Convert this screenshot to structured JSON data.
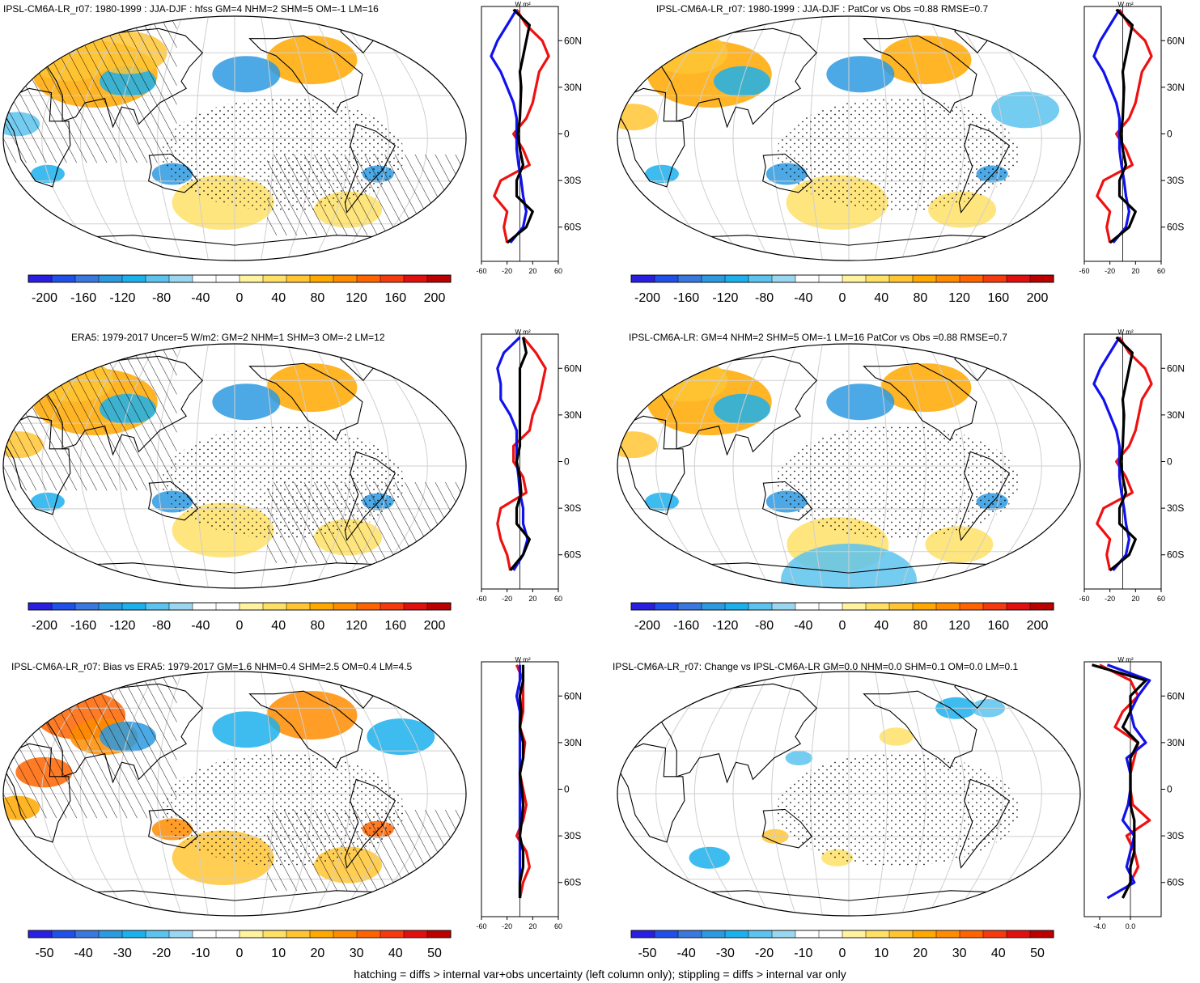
{
  "footer": "hatching = diffs > internal var+obs uncertainty (left column only); stippling = diffs > internal var only",
  "colors": {
    "ocean": "#ffffff",
    "land_outline": "#000000",
    "graticule": "#cfcfcf",
    "palette": [
      "#2a1fe0",
      "#2050e8",
      "#3a78e0",
      "#2d9ae0",
      "#1cb0ec",
      "#5cc3ee",
      "#9bd6f1",
      "#ffffff",
      "#ffffff",
      "#fff3a0",
      "#ffe066",
      "#ffc535",
      "#ffa800",
      "#ff8c00",
      "#ff6400",
      "#f53a10",
      "#e01010",
      "#bb0000"
    ],
    "profile_red": "#ee1111",
    "profile_blue": "#1111ee",
    "profile_black": "#000000"
  },
  "profile_axis": {
    "unit": "W m²",
    "lat_ticks": [
      "60N",
      "30N",
      "0",
      "30S",
      "60S"
    ],
    "x_ticks": [
      "-60",
      "-20",
      "20",
      "60"
    ],
    "x_ticks_small": [
      "-4.0",
      "0.0"
    ]
  },
  "panels": [
    {
      "title": "IPSL-CM6A-LR_r07: 1980-1999 : JJA-DJF : hfss GM=4 NHM=2 SHM=5 OM=-1 LM=16",
      "colorbar_labels": [
        "-200",
        "-160",
        "-120",
        "-80",
        "-40",
        "0",
        "40",
        "80",
        "120",
        "160",
        "200"
      ],
      "hatched": true,
      "profile_scale": "large"
    },
    {
      "title": "IPSL-CM6A-LR_r07: 1980-1999 : JJA-DJF : PatCor vs Obs =0.88 RMSE=0.7",
      "colorbar_labels": [
        "-200",
        "-160",
        "-120",
        "-80",
        "-40",
        "0",
        "40",
        "80",
        "120",
        "160",
        "200"
      ],
      "hatched": false,
      "profile_scale": "large"
    },
    {
      "title": "ERA5: 1979-2017 Uncer=5 W/m2: GM=2 NHM=1 SHM=3 OM=-2 LM=12",
      "colorbar_labels": [
        "-200",
        "-160",
        "-120",
        "-80",
        "-40",
        "0",
        "40",
        "80",
        "120",
        "160",
        "200"
      ],
      "hatched": true,
      "profile_scale": "large"
    },
    {
      "title": "IPSL-CM6A-LR: GM=4 NHM=2 SHM=5 OM=-1 LM=16 PatCor vs Obs =0.88 RMSE=0.7",
      "colorbar_labels": [
        "-200",
        "-160",
        "-120",
        "-80",
        "-40",
        "0",
        "40",
        "80",
        "120",
        "160",
        "200"
      ],
      "hatched": false,
      "profile_scale": "large"
    },
    {
      "title": "IPSL-CM6A-LR_r07: Bias vs ERA5: 1979-2017 GM=1.6 NHM=0.4 SHM=2.5 OM=0.4 LM=4.5",
      "colorbar_labels": [
        "-50",
        "-40",
        "-30",
        "-20",
        "-10",
        "0",
        "10",
        "20",
        "30",
        "40",
        "50"
      ],
      "hatched": true,
      "profile_scale": "large"
    },
    {
      "title": "IPSL-CM6A-LR_r07: Change vs IPSL-CM6A-LR GM=0.0 NHM=0.0 SHM=0.1 OM=0.0 LM=0.1",
      "colorbar_labels": [
        "-50",
        "-40",
        "-30",
        "-20",
        "-10",
        "0",
        "10",
        "20",
        "30",
        "40",
        "50"
      ],
      "hatched": false,
      "profile_scale": "small"
    }
  ],
  "chart_data": [
    {
      "type": "heatmap",
      "title": "IPSL-CM6A-LR_r07: 1980-1999 : JJA-DJF : hfss GM=4 NHM=2 SHM=5 OM=-1 LM=16",
      "projection": "Robinson (Pacific-centred)",
      "global_means": {
        "GM": 4,
        "NHM": 2,
        "SHM": 5,
        "OM": -1,
        "LM": 16
      },
      "colorbar_range": [
        -200,
        200
      ],
      "zonal_mean_profiles": {
        "x_range": [
          -60,
          60
        ],
        "lat": [
          80,
          70,
          60,
          50,
          40,
          30,
          20,
          10,
          0,
          -10,
          -20,
          -30,
          -40,
          -50,
          -60,
          -70
        ],
        "series": [
          {
            "values": [
              -5,
              10,
              35,
              45,
              30,
              25,
              20,
              10,
              -10,
              5,
              15,
              -30,
              -40,
              -20,
              -25,
              -20
            ]
          },
          {
            "values": [
              -5,
              -20,
              -35,
              -45,
              -30,
              -20,
              -10,
              -5,
              -5,
              -5,
              -2,
              2,
              5,
              10,
              5,
              -15
            ]
          },
          {
            "values": [
              -10,
              15,
              10,
              5,
              0,
              2,
              1,
              0,
              -3,
              0,
              5,
              -5,
              -5,
              20,
              10,
              -20
            ]
          }
        ]
      }
    },
    {
      "type": "heatmap",
      "title": "IPSL-CM6A-LR_r07: 1980-1999 : JJA-DJF : PatCor vs Obs =0.88 RMSE=0.7",
      "projection": "Robinson (Pacific-centred)",
      "pattern_correlation": 0.88,
      "rmse": 0.7,
      "colorbar_range": [
        -200,
        200
      ],
      "zonal_mean_profiles": {
        "x_range": [
          -60,
          60
        ],
        "lat": [
          80,
          70,
          60,
          50,
          40,
          30,
          20,
          10,
          0,
          -10,
          -20,
          -30,
          -40,
          -50,
          -60,
          -70
        ],
        "series": [
          {
            "values": [
              -5,
              10,
              35,
              45,
              30,
              25,
              20,
              10,
              -10,
              5,
              15,
              -30,
              -40,
              -20,
              -25,
              -20
            ]
          },
          {
            "values": [
              -5,
              -20,
              -35,
              -45,
              -30,
              -20,
              -10,
              -5,
              -5,
              -5,
              -2,
              2,
              5,
              10,
              5,
              -15
            ]
          },
          {
            "values": [
              -10,
              15,
              10,
              5,
              0,
              2,
              1,
              0,
              -3,
              0,
              5,
              -5,
              -5,
              20,
              10,
              -20
            ]
          }
        ]
      }
    },
    {
      "type": "heatmap",
      "title": "ERA5: 1979-2017 Uncer=5 W/m2: GM=2 NHM=1 SHM=3 OM=-2 LM=12",
      "projection": "Robinson (Pacific-centred)",
      "global_means": {
        "GM": 2,
        "NHM": 1,
        "SHM": 3,
        "OM": -2,
        "LM": 12
      },
      "colorbar_range": [
        -200,
        200
      ],
      "zonal_mean_profiles": {
        "x_range": [
          -60,
          60
        ],
        "lat": [
          80,
          70,
          60,
          50,
          40,
          30,
          20,
          10,
          0,
          -10,
          -20,
          -30,
          -40,
          -50,
          -60,
          -70
        ],
        "series": [
          {
            "values": [
              5,
              25,
              40,
              35,
              30,
              20,
              15,
              -10,
              -10,
              5,
              10,
              -30,
              -35,
              -30,
              -20,
              -15
            ]
          },
          {
            "values": [
              0,
              -25,
              -35,
              -30,
              -30,
              -15,
              -5,
              -5,
              -5,
              -2,
              0,
              5,
              5,
              12,
              5,
              -10
            ]
          },
          {
            "values": [
              5,
              10,
              0,
              0,
              0,
              0,
              0,
              0,
              -5,
              0,
              2,
              -5,
              -5,
              15,
              5,
              -15
            ]
          }
        ]
      }
    },
    {
      "type": "heatmap",
      "title": "IPSL-CM6A-LR: GM=4 NHM=2 SHM=5 OM=-1 LM=16 PatCor vs Obs =0.88 RMSE=0.7",
      "projection": "Robinson (Pacific-centred)",
      "global_means": {
        "GM": 4,
        "NHM": 2,
        "SHM": 5,
        "OM": -1,
        "LM": 16
      },
      "pattern_correlation": 0.88,
      "rmse": 0.7,
      "colorbar_range": [
        -200,
        200
      ],
      "zonal_mean_profiles": {
        "x_range": [
          -60,
          60
        ],
        "lat": [
          80,
          70,
          60,
          50,
          40,
          30,
          20,
          10,
          0,
          -10,
          -20,
          -30,
          -40,
          -50,
          -60,
          -70
        ],
        "series": [
          {
            "values": [
              -5,
              10,
              35,
              45,
              30,
              25,
              20,
              10,
              -10,
              5,
              15,
              -30,
              -40,
              -20,
              -25,
              -20
            ]
          },
          {
            "values": [
              -5,
              -20,
              -35,
              -45,
              -30,
              -20,
              -10,
              -5,
              -5,
              -5,
              -2,
              2,
              5,
              10,
              5,
              -15
            ]
          },
          {
            "values": [
              -10,
              15,
              10,
              5,
              0,
              2,
              1,
              0,
              -3,
              0,
              5,
              -5,
              -5,
              20,
              10,
              -20
            ]
          }
        ]
      }
    },
    {
      "type": "heatmap",
      "title": "IPSL-CM6A-LR_r07: Bias vs ERA5: 1979-2017 GM=1.6 NHM=0.4 SHM=2.5 OM=0.4 LM=4.5",
      "projection": "Robinson (Pacific-centred)",
      "global_means": {
        "GM": 1.6,
        "NHM": 0.4,
        "SHM": 2.5,
        "OM": 0.4,
        "LM": 4.5
      },
      "colorbar_range": [
        -50,
        50
      ],
      "zonal_mean_profiles": {
        "x_range": [
          -60,
          60
        ],
        "lat": [
          80,
          70,
          60,
          50,
          40,
          30,
          20,
          10,
          0,
          -10,
          -20,
          -30,
          -40,
          -50,
          -60,
          -70
        ],
        "series": [
          {
            "values": [
              -5,
              5,
              5,
              5,
              0,
              8,
              5,
              0,
              5,
              10,
              5,
              -5,
              10,
              15,
              5,
              0
            ]
          },
          {
            "values": [
              0,
              0,
              -5,
              0,
              0,
              0,
              0,
              0,
              0,
              0,
              0,
              0,
              0,
              0,
              0,
              0
            ]
          },
          {
            "values": [
              5,
              5,
              0,
              2,
              0,
              5,
              5,
              0,
              3,
              5,
              3,
              0,
              5,
              5,
              0,
              0
            ]
          }
        ]
      }
    },
    {
      "type": "heatmap",
      "title": "IPSL-CM6A-LR_r07: Change vs IPSL-CM6A-LR GM=0.0 NHM=0.0 SHM=0.1 OM=0.0 LM=0.1",
      "projection": "Robinson (Pacific-centred)",
      "global_means": {
        "GM": 0.0,
        "NHM": 0.0,
        "SHM": 0.1,
        "OM": 0.0,
        "LM": 0.1
      },
      "colorbar_range": [
        -50,
        50
      ],
      "zonal_mean_profiles": {
        "x_range": [
          -6,
          4
        ],
        "lat": [
          80,
          70,
          60,
          50,
          40,
          30,
          20,
          10,
          0,
          -10,
          -20,
          -30,
          -40,
          -50,
          -60,
          -70
        ],
        "series": [
          {
            "values": [
              -4,
              0,
              1,
              -1,
              -2,
              1,
              0.5,
              0,
              0,
              0.3,
              2.5,
              -0.5,
              0.5,
              1,
              0,
              -1
            ]
          },
          {
            "values": [
              -3,
              2.5,
              1,
              0,
              0.5,
              2,
              -0.5,
              0,
              0,
              -0.3,
              -1,
              0.5,
              0,
              -0.5,
              0.5,
              -3
            ]
          },
          {
            "values": [
              -5,
              2,
              0,
              0,
              -1,
              1,
              0,
              0,
              0,
              0,
              0.5,
              0.5,
              0.5,
              0,
              0,
              -1
            ]
          }
        ]
      }
    }
  ]
}
